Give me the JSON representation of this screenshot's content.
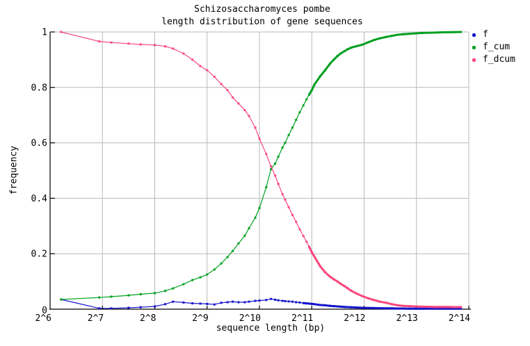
{
  "chart_data": {
    "type": "line",
    "title_line1": "Schizosaccharomyces pombe",
    "title_line2": "length distribution of gene sequences",
    "xlabel": "sequence length (bp)",
    "ylabel": "frequency",
    "x_unit": "log2(bp)",
    "x_range_log2": [
      6,
      14
    ],
    "ylim": [
      0,
      1
    ],
    "grid": true,
    "grid_color": "#b9b9b9",
    "axis_color": "#000000",
    "legend_position": "top-right-outside",
    "x_ticks": [
      {
        "t": 6,
        "label": "2^6"
      },
      {
        "t": 7,
        "label": "2^7"
      },
      {
        "t": 8,
        "label": "2^8"
      },
      {
        "t": 9,
        "label": "2^9"
      },
      {
        "t": 10,
        "label": "2^10"
      },
      {
        "t": 11,
        "label": "2^11"
      },
      {
        "t": 12,
        "label": "2^12"
      },
      {
        "t": 13,
        "label": "2^13"
      },
      {
        "t": 14,
        "label": "2^14"
      }
    ],
    "y_ticks": [
      {
        "v": 0,
        "label": "0"
      },
      {
        "v": 0.2,
        "label": "0.2"
      },
      {
        "v": 0.4,
        "label": "0.4"
      },
      {
        "v": 0.6,
        "label": "0.6"
      },
      {
        "v": 0.8,
        "label": "0.8"
      },
      {
        "v": 1,
        "label": "1"
      }
    ],
    "x_log2": [
      6.21,
      6.94,
      7.17,
      7.5,
      7.73,
      8.0,
      8.2,
      8.35,
      8.55,
      8.72,
      8.87,
      9.0,
      9.14,
      9.27,
      9.39,
      9.49,
      9.6,
      9.72,
      9.8,
      9.92,
      10.0,
      10.13,
      10.22,
      10.3,
      10.36,
      10.44,
      10.49,
      10.56,
      10.63,
      10.7,
      10.77,
      10.84,
      10.9,
      10.95,
      11.0,
      11.05,
      11.16,
      11.25,
      11.35,
      11.42,
      11.49,
      11.55,
      11.62,
      11.68,
      11.75,
      11.86,
      11.98,
      12.08,
      12.19,
      12.3,
      12.42,
      12.53,
      12.64,
      12.75,
      12.87,
      12.99,
      13.12,
      13.31,
      13.45,
      13.6,
      13.72,
      13.85
    ],
    "series": [
      {
        "name": "f",
        "color": "#1414cc",
        "dense_from": 10.95,
        "values": [
          0.035,
          0.003,
          0.003,
          0.005,
          0.007,
          0.01,
          0.018,
          0.027,
          0.024,
          0.021,
          0.02,
          0.019,
          0.017,
          0.023,
          0.025,
          0.027,
          0.025,
          0.025,
          0.027,
          0.03,
          0.031,
          0.033,
          0.037,
          0.034,
          0.032,
          0.03,
          0.029,
          0.028,
          0.027,
          0.025,
          0.024,
          0.022,
          0.021,
          0.02,
          0.019,
          0.018,
          0.015,
          0.014,
          0.012,
          0.011,
          0.01,
          0.009,
          0.008,
          0.0075,
          0.007,
          0.006,
          0.005,
          0.0045,
          0.004,
          0.0035,
          0.003,
          0.003,
          0.0025,
          0.0025,
          0.002,
          0.002,
          0.002,
          0.002,
          0.002,
          0.002,
          0.002,
          0.002
        ]
      },
      {
        "name": "f_cum",
        "color": "#00a020",
        "dense_from": 11.05,
        "values": [
          0.035,
          0.042,
          0.045,
          0.05,
          0.054,
          0.058,
          0.066,
          0.075,
          0.09,
          0.105,
          0.115,
          0.125,
          0.143,
          0.165,
          0.188,
          0.21,
          0.237,
          0.265,
          0.292,
          0.33,
          0.365,
          0.44,
          0.505,
          0.525,
          0.55,
          0.583,
          0.6,
          0.628,
          0.655,
          0.683,
          0.71,
          0.735,
          0.757,
          0.774,
          0.79,
          0.81,
          0.84,
          0.861,
          0.886,
          0.9,
          0.913,
          0.922,
          0.93,
          0.937,
          0.943,
          0.949,
          0.955,
          0.963,
          0.971,
          0.977,
          0.982,
          0.986,
          0.99,
          0.992,
          0.9935,
          0.995,
          0.9965,
          0.9975,
          0.9985,
          0.999,
          0.9995,
          1.0
        ]
      },
      {
        "name": "f_dcum",
        "color": "#f8487c",
        "dense_from": 11.05,
        "values": [
          1.0,
          0.966,
          0.962,
          0.958,
          0.955,
          0.953,
          0.948,
          0.94,
          0.922,
          0.9,
          0.877,
          0.862,
          0.838,
          0.812,
          0.79,
          0.764,
          0.742,
          0.718,
          0.697,
          0.655,
          0.615,
          0.56,
          0.515,
          0.482,
          0.452,
          0.415,
          0.395,
          0.368,
          0.34,
          0.315,
          0.288,
          0.264,
          0.243,
          0.225,
          0.205,
          0.19,
          0.155,
          0.134,
          0.117,
          0.108,
          0.1,
          0.092,
          0.084,
          0.076,
          0.067,
          0.056,
          0.046,
          0.039,
          0.033,
          0.027,
          0.023,
          0.018,
          0.014,
          0.012,
          0.011,
          0.01,
          0.009,
          0.008,
          0.008,
          0.008,
          0.0075,
          0.0075
        ]
      }
    ],
    "legend": {
      "items": [
        {
          "label": "f",
          "color": "#1414cc"
        },
        {
          "label": "f_cum",
          "color": "#00a020"
        },
        {
          "label": "f_dcum",
          "color": "#f8487c"
        }
      ]
    }
  }
}
